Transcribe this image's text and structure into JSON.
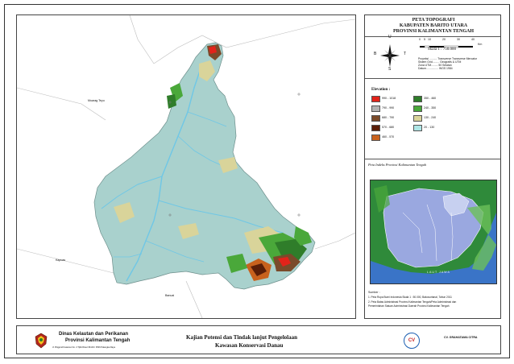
{
  "map_title": {
    "line1": "PETA TOPOGRAFI",
    "line2": "KABUPATEN BARITO UTARA",
    "line3": "PROVINSI KALIMANTAN TENGAH"
  },
  "scale": {
    "ticks": [
      "0",
      "5",
      "10",
      "20",
      "30",
      "40"
    ],
    "unit": "Km",
    "label": "Skala  1 : 750.000"
  },
  "compass": {
    "n": "U",
    "s": "S",
    "e": "T",
    "w": "B"
  },
  "projection": {
    "line1": "Proyeksi .......... Transverse Transverse Mercator",
    "line2": "Sistem Grid......... Geografis & UTM",
    "line3": "Zona UTM......... 50 Selatan",
    "line4": "Datum................ WGS 1984"
  },
  "legend": {
    "title": "Elevation :",
    "items": [
      {
        "label": "990 - 1018",
        "color": "#e2231a"
      },
      {
        "label": "790 - 990",
        "color": "#b2b2b2"
      },
      {
        "label": "680 - 790",
        "color": "#7a4a2a"
      },
      {
        "label": "570 - 680",
        "color": "#5a1e08"
      },
      {
        "label": "460 - 570",
        "color": "#c8621e"
      },
      {
        "label": "350 - 460",
        "color": "#2f7d2a"
      },
      {
        "label": "240 - 350",
        "color": "#4aa83a"
      },
      {
        "label": "130 - 240",
        "color": "#d9d49a"
      },
      {
        "label": "20 - 130",
        "color": "#aee6e6"
      }
    ]
  },
  "inset": {
    "title": "Peta Indeks Provinsi Kalimantan Tengah",
    "sea_label": "LAUT JAWA"
  },
  "source": {
    "heading": "Sumber :",
    "line1": "1. Peta Rupa Bumi Indonesia Skala 1 : 50.000, Bakosurtanal, Tahun 2011",
    "line2": "2. Peta Batas Administrasi Provinsi Kalimantan Tengah/Peta Administrasi dan",
    "line3": "   Pemerintahan Satuan Administrasi Daerah Provinsi Kalimantan Tengah"
  },
  "place_labels": {
    "muara_teweh": "Muarag Teyu",
    "bottom_left": "Kapuas",
    "bottom_center": "Banuai"
  },
  "institution": {
    "name1": "Dinas Kelautan dan Perikanan",
    "name2": "Provinsi Kalimantan Tengah",
    "address": "Jl. Brigjend Katamso No. 4 Tjilik Riwut 96104 / 0536 Palangka Raya"
  },
  "project": {
    "line1": "Kajian Potensi dan Tindak lanjut Pengelolaan",
    "line2": "Kawasan Konservasi Danau"
  },
  "consultant": {
    "logo_text": "CV",
    "name": "CV. GRAHATAMA CITRA"
  },
  "colors": {
    "lowland": "#a9d1cd",
    "river": "#6fc7e6",
    "sea_inset": "#3a74c7",
    "region_inset": "#9aa8e0"
  }
}
